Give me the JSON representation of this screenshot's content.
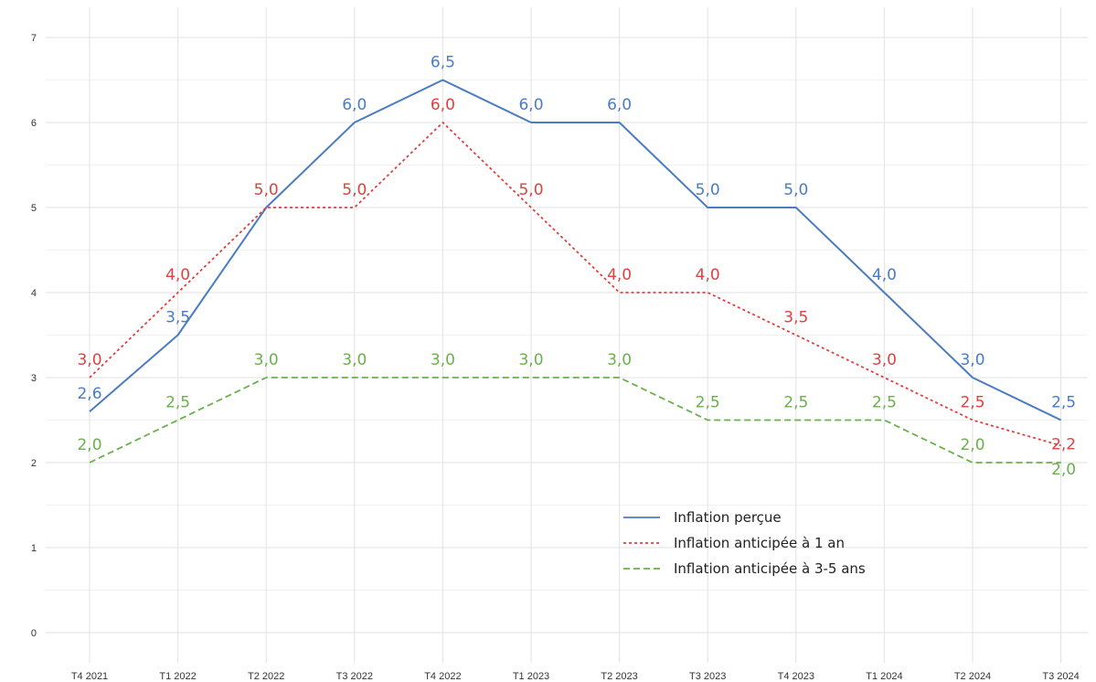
{
  "chart_data": {
    "type": "line",
    "categories": [
      "T4 2021",
      "T1 2022",
      "T2 2022",
      "T3 2022",
      "T4 2022",
      "T1 2023",
      "T2 2023",
      "T3 2023",
      "T4 2023",
      "T1 2024",
      "T2 2024",
      "T3 2024"
    ],
    "yticks": [
      "0",
      "1",
      "2",
      "3",
      "4",
      "5",
      "6",
      "7"
    ],
    "ylim": [
      0,
      7
    ],
    "grid": true,
    "legend_position": "bottom-right",
    "series": [
      {
        "name": "Inflation perçue",
        "color": "#4a7cc4",
        "dash": "solid",
        "values": [
          2.6,
          3.5,
          5.0,
          6.0,
          6.5,
          6.0,
          6.0,
          5.0,
          5.0,
          4.0,
          3.0,
          2.5
        ],
        "labels": [
          "2,6",
          "3,5",
          "",
          "6,0",
          "6,5",
          "6,0",
          "6,0",
          "5,0",
          "5,0",
          "4,0",
          "3,0",
          "2,5"
        ]
      },
      {
        "name": "Inflation anticipée à 1 an",
        "color": "#e04040",
        "dash": "dotted",
        "values": [
          3.0,
          4.0,
          5.0,
          5.0,
          6.0,
          5.0,
          4.0,
          4.0,
          3.5,
          3.0,
          2.5,
          2.2
        ],
        "labels": [
          "3,0",
          "4,0",
          "5,0",
          "5,0",
          "6,0",
          "5,0",
          "4,0",
          "4,0",
          "3,5",
          "3,0",
          "2,5",
          "2,2"
        ]
      },
      {
        "name": "Inflation anticipée à 3-5 ans",
        "color": "#6ab04c",
        "dash": "dashed",
        "values": [
          2.0,
          2.5,
          3.0,
          3.0,
          3.0,
          3.0,
          3.0,
          2.5,
          2.5,
          2.5,
          2.0,
          2.0
        ],
        "labels": [
          "2,0",
          "2,5",
          "3,0",
          "3,0",
          "3,0",
          "3,0",
          "3,0",
          "2,5",
          "2,5",
          "2,5",
          "2,0",
          "2,0"
        ]
      }
    ]
  }
}
